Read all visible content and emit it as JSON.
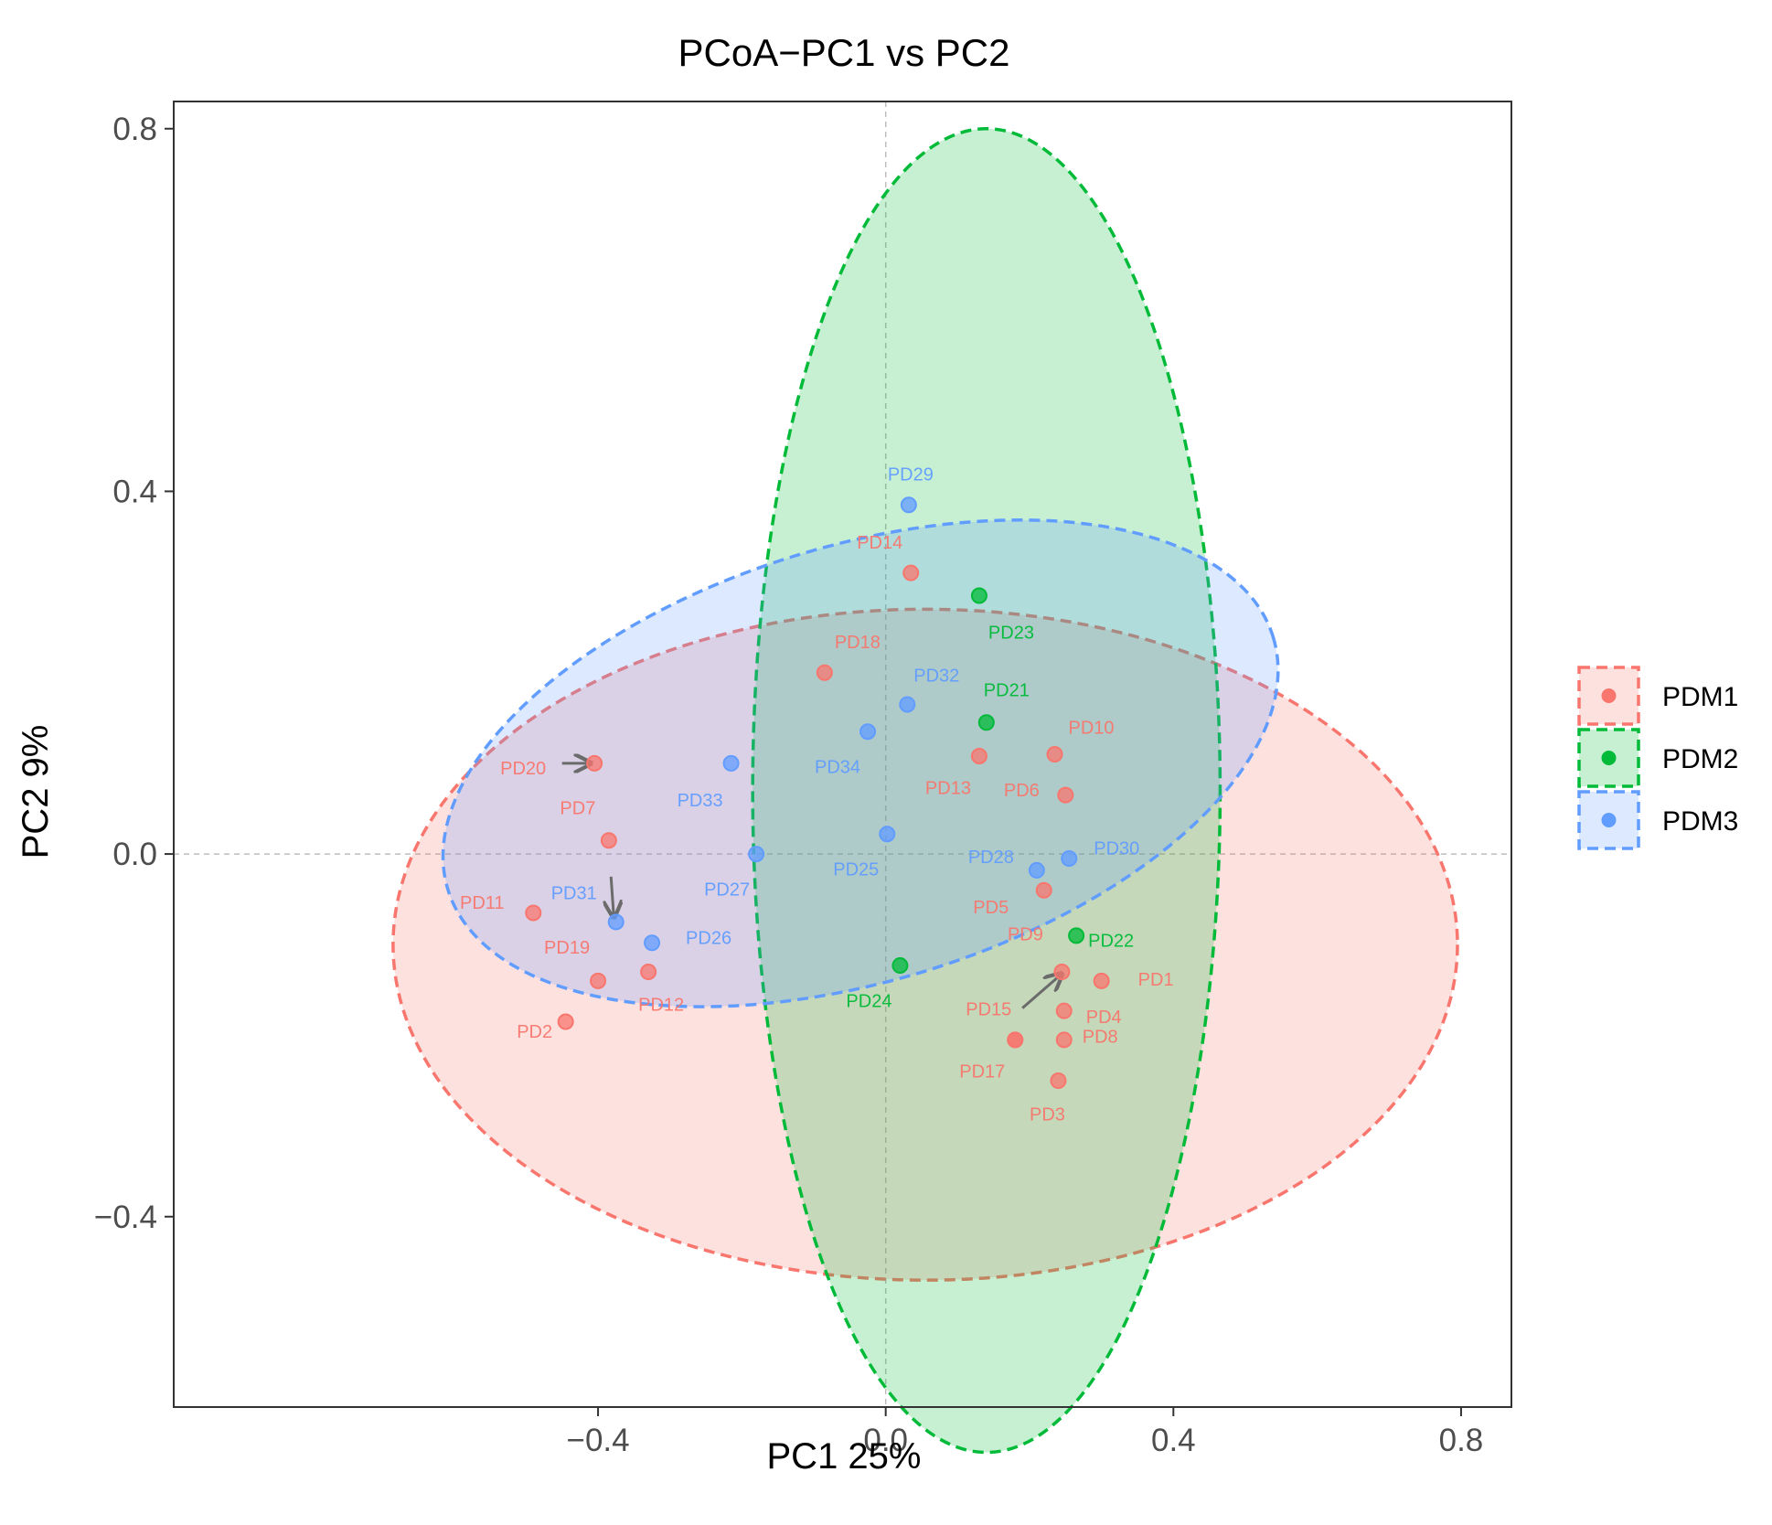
{
  "chart_data": {
    "type": "scatter",
    "title": "PCoA−PC1 vs PC2",
    "xlabel": "PC1 25%",
    "ylabel": "PC2 9%",
    "xlim": [
      -0.99,
      0.87
    ],
    "ylim": [
      -0.61,
      0.83
    ],
    "xticks": [
      -0.4,
      0.0,
      0.4,
      0.8
    ],
    "yticks": [
      -0.4,
      0.0,
      0.4,
      0.8
    ],
    "xtick_labels": [
      "−0.4",
      "0.0",
      "0.4",
      "0.8"
    ],
    "ytick_labels": [
      "−0.4",
      "0.0",
      "0.4",
      "0.8"
    ],
    "reference_lines": {
      "x": 0,
      "y": 0,
      "style": "dashed"
    },
    "legend": {
      "position": "right"
    },
    "groups": [
      {
        "name": "PDM1",
        "color": "#F8766D"
      },
      {
        "name": "PDM2",
        "color": "#00BA38"
      },
      {
        "name": "PDM3",
        "color": "#619CFF"
      }
    ],
    "ellipses": [
      {
        "group": "PDM1",
        "cx": 0.055,
        "cy": -0.1,
        "rx": 0.74,
        "ry": 0.37,
        "angle": 0
      },
      {
        "group": "PDM2",
        "cx": 0.14,
        "cy": 0.07,
        "rx": 0.325,
        "ry": 0.73,
        "angle": 0
      },
      {
        "group": "PDM3",
        "cx": -0.035,
        "cy": 0.1,
        "rx": 0.6,
        "ry": 0.24,
        "angle": 17
      }
    ],
    "points": [
      {
        "label": "PD1",
        "group": "PDM1",
        "x": 0.3,
        "y": -0.14
      },
      {
        "label": "PD2",
        "group": "PDM1",
        "x": -0.445,
        "y": -0.185
      },
      {
        "label": "PD3",
        "group": "PDM1",
        "x": 0.24,
        "y": -0.25
      },
      {
        "label": "PD4",
        "group": "PDM1",
        "x": 0.248,
        "y": -0.173
      },
      {
        "label": "PD5",
        "group": "PDM1",
        "x": 0.22,
        "y": -0.04
      },
      {
        "label": "PD6",
        "group": "PDM1",
        "x": 0.25,
        "y": 0.065
      },
      {
        "label": "PD7",
        "group": "PDM1",
        "x": -0.385,
        "y": 0.015
      },
      {
        "label": "PD8",
        "group": "PDM1",
        "x": 0.248,
        "y": -0.205
      },
      {
        "label": "PD9",
        "group": "PDM1",
        "x": 0.245,
        "y": -0.13
      },
      {
        "label": "PD10",
        "group": "PDM1",
        "x": 0.235,
        "y": 0.11
      },
      {
        "label": "PD11",
        "group": "PDM1",
        "x": -0.49,
        "y": -0.065
      },
      {
        "label": "PD12",
        "group": "PDM1",
        "x": -0.33,
        "y": -0.13
      },
      {
        "label": "PD13",
        "group": "PDM1",
        "x": 0.13,
        "y": 0.108
      },
      {
        "label": "PD14",
        "group": "PDM1",
        "x": 0.035,
        "y": 0.31
      },
      {
        "label": "PD15",
        "group": "PDM1",
        "x": 0.18,
        "y": -0.205
      },
      {
        "label": "PD17",
        "group": "PDM1",
        "x": 0.18,
        "y": -0.205
      },
      {
        "label": "PD18",
        "group": "PDM1",
        "x": -0.085,
        "y": 0.2
      },
      {
        "label": "PD19",
        "group": "PDM1",
        "x": -0.4,
        "y": -0.14
      },
      {
        "label": "PD20",
        "group": "PDM1",
        "x": -0.405,
        "y": 0.1
      },
      {
        "label": "PD21",
        "group": "PDM2",
        "x": 0.14,
        "y": 0.145
      },
      {
        "label": "PD22",
        "group": "PDM2",
        "x": 0.265,
        "y": -0.09
      },
      {
        "label": "PD23",
        "group": "PDM2",
        "x": 0.13,
        "y": 0.285
      },
      {
        "label": "PD24",
        "group": "PDM2",
        "x": 0.02,
        "y": -0.123
      },
      {
        "label": "PD25",
        "group": "PDM3",
        "x": 0.002,
        "y": 0.022
      },
      {
        "label": "PD26",
        "group": "PDM3",
        "x": -0.325,
        "y": -0.098
      },
      {
        "label": "PD27",
        "group": "PDM3",
        "x": -0.18,
        "y": 0.0
      },
      {
        "label": "PD28",
        "group": "PDM3",
        "x": 0.21,
        "y": -0.018
      },
      {
        "label": "PD29",
        "group": "PDM3",
        "x": 0.032,
        "y": 0.385
      },
      {
        "label": "PD30",
        "group": "PDM3",
        "x": 0.255,
        "y": -0.005
      },
      {
        "label": "PD31",
        "group": "PDM3",
        "x": -0.375,
        "y": -0.075
      },
      {
        "label": "PD32",
        "group": "PDM3",
        "x": 0.03,
        "y": 0.165
      },
      {
        "label": "PD33",
        "group": "PDM3",
        "x": -0.215,
        "y": 0.1
      },
      {
        "label": "PD34",
        "group": "PDM3",
        "x": -0.025,
        "y": 0.135
      }
    ],
    "arrows": [
      {
        "from": [
          -0.45,
          0.1
        ],
        "to": [
          -0.41,
          0.1
        ]
      },
      {
        "from": [
          -0.382,
          -0.025
        ],
        "to": [
          -0.378,
          -0.07
        ]
      },
      {
        "from": [
          0.19,
          -0.17
        ],
        "to": [
          0.245,
          -0.132
        ]
      }
    ]
  }
}
